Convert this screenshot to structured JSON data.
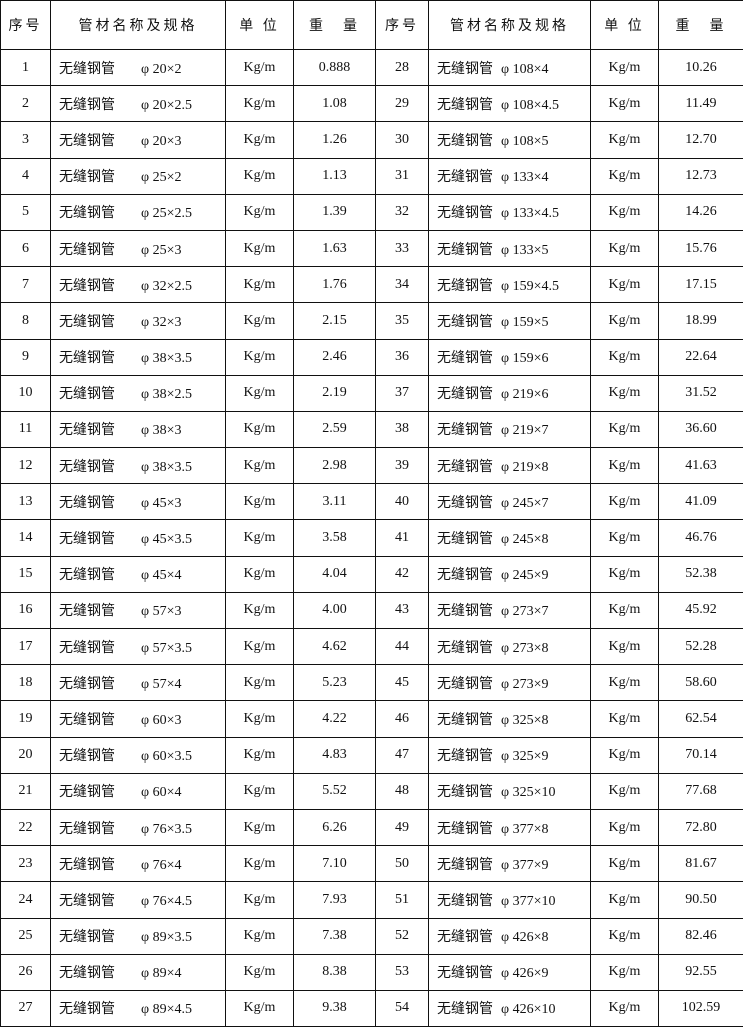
{
  "headers": [
    "序号",
    "管材名称及规格",
    "单 位",
    "重　量",
    "序号",
    "管材名称及规格",
    "单 位",
    "重　量"
  ],
  "pipe_name": "无缝钢管",
  "unit": "Kg/m",
  "left": [
    [
      "1",
      "φ 20×2",
      "0.888"
    ],
    [
      "2",
      "φ 20×2.5",
      "1.08"
    ],
    [
      "3",
      "φ 20×3",
      "1.26"
    ],
    [
      "4",
      "φ 25×2",
      "1.13"
    ],
    [
      "5",
      "φ 25×2.5",
      "1.39"
    ],
    [
      "6",
      "φ 25×3",
      "1.63"
    ],
    [
      "7",
      "φ 32×2.5",
      "1.76"
    ],
    [
      "8",
      "φ 32×3",
      "2.15"
    ],
    [
      "9",
      "φ 38×3.5",
      "2.46"
    ],
    [
      "10",
      "φ 38×2.5",
      "2.19"
    ],
    [
      "11",
      "φ 38×3",
      "2.59"
    ],
    [
      "12",
      "φ 38×3.5",
      "2.98"
    ],
    [
      "13",
      "φ 45×3",
      "3.11"
    ],
    [
      "14",
      "φ 45×3.5",
      "3.58"
    ],
    [
      "15",
      "φ 45×4",
      "4.04"
    ],
    [
      "16",
      "φ 57×3",
      "4.00"
    ],
    [
      "17",
      "φ 57×3.5",
      "4.62"
    ],
    [
      "18",
      "φ 57×4",
      "5.23"
    ],
    [
      "19",
      "φ 60×3",
      "4.22"
    ],
    [
      "20",
      "φ 60×3.5",
      "4.83"
    ],
    [
      "21",
      "φ 60×4",
      "5.52"
    ],
    [
      "22",
      "φ 76×3.5",
      "6.26"
    ],
    [
      "23",
      "φ 76×4",
      "7.10"
    ],
    [
      "24",
      "φ 76×4.5",
      "7.93"
    ],
    [
      "25",
      "φ 89×3.5",
      "7.38"
    ],
    [
      "26",
      "φ 89×4",
      "8.38"
    ],
    [
      "27",
      "φ 89×4.5",
      "9.38"
    ]
  ],
  "right": [
    [
      "28",
      "φ 108×4",
      "10.26"
    ],
    [
      "29",
      "φ 108×4.5",
      "11.49"
    ],
    [
      "30",
      "φ 108×5",
      "12.70"
    ],
    [
      "31",
      "φ 133×4",
      "12.73"
    ],
    [
      "32",
      "φ 133×4.5",
      "14.26"
    ],
    [
      "33",
      "φ 133×5",
      "15.76"
    ],
    [
      "34",
      "φ 159×4.5",
      "17.15"
    ],
    [
      "35",
      "φ 159×5",
      "18.99"
    ],
    [
      "36",
      "φ 159×6",
      "22.64"
    ],
    [
      "37",
      "φ 219×6",
      "31.52"
    ],
    [
      "38",
      "φ 219×7",
      "36.60"
    ],
    [
      "39",
      "φ 219×8",
      "41.63"
    ],
    [
      "40",
      "φ 245×7",
      "41.09"
    ],
    [
      "41",
      "φ 245×8",
      "46.76"
    ],
    [
      "42",
      "φ 245×9",
      "52.38"
    ],
    [
      "43",
      "φ 273×7",
      "45.92"
    ],
    [
      "44",
      "φ 273×8",
      "52.28"
    ],
    [
      "45",
      "φ 273×9",
      "58.60"
    ],
    [
      "46",
      "φ 325×8",
      "62.54"
    ],
    [
      "47",
      "φ 325×9",
      "70.14"
    ],
    [
      "48",
      "φ 325×10",
      "77.68"
    ],
    [
      "49",
      "φ 377×8",
      "72.80"
    ],
    [
      "50",
      "φ 377×9",
      "81.67"
    ],
    [
      "51",
      "φ 377×10",
      "90.50"
    ],
    [
      "52",
      "φ 426×8",
      "82.46"
    ],
    [
      "53",
      "φ 426×9",
      "92.55"
    ],
    [
      "54",
      "φ 426×10",
      "102.59"
    ]
  ]
}
